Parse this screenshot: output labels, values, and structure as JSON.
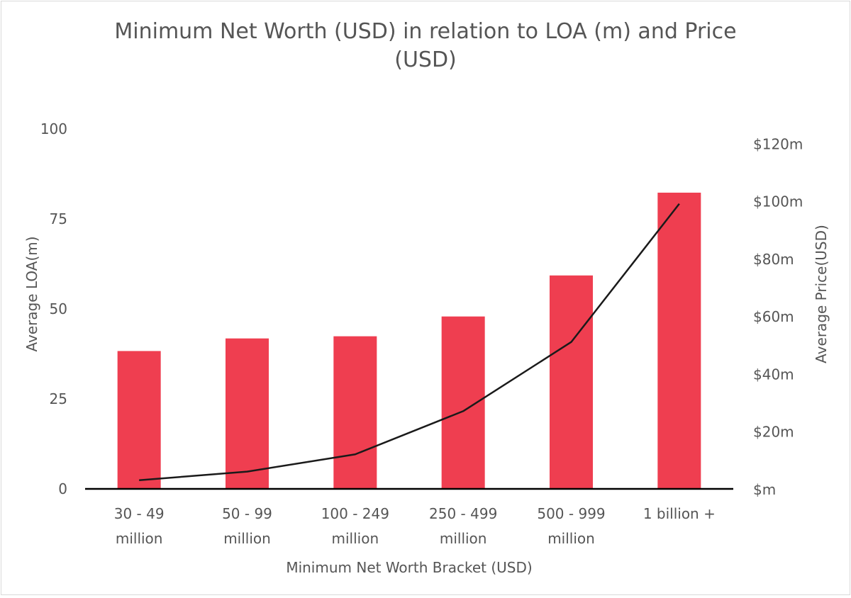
{
  "chart_data": {
    "type": "bar",
    "title_lines": [
      "Minimum Net Worth (USD) in relation to LOA (m) and Price",
      "(USD)"
    ],
    "xlabel": "Minimum Net Worth Bracket (USD)",
    "ylabel": "Average LOA(m)",
    "y2label": "Average Price(USD)",
    "categories": [
      [
        "30 - 49",
        "million"
      ],
      [
        "50 - 99",
        "million"
      ],
      [
        "100 - 249",
        "million"
      ],
      [
        "250 - 499",
        "million"
      ],
      [
        "500 - 999",
        "million"
      ],
      [
        "1 billion +"
      ]
    ],
    "ylim": [
      0,
      100
    ],
    "y_ticks": [
      "0",
      "25",
      "50",
      "75",
      "100"
    ],
    "y_tick_values": [
      0,
      25,
      50,
      75,
      100
    ],
    "y2lim": [
      0,
      125
    ],
    "y2_ticks": [
      "$m",
      "$20m",
      "$40m",
      "$60m",
      "$80m",
      "$100m",
      "$120m"
    ],
    "y2_tick_values": [
      0,
      20,
      40,
      60,
      80,
      100,
      120
    ],
    "series": [
      {
        "name": "Average LOA(m)",
        "kind": "bar",
        "axis": "left",
        "color": "#ef3e50",
        "values": [
          38.3,
          41.8,
          42.4,
          47.9,
          59.3,
          82.3
        ]
      },
      {
        "name": "Average Price(USD)",
        "kind": "line",
        "axis": "right",
        "color": "#1a1a1a",
        "values": [
          3,
          6,
          12,
          27,
          51,
          99
        ]
      }
    ],
    "grid": false,
    "legend": "none"
  }
}
